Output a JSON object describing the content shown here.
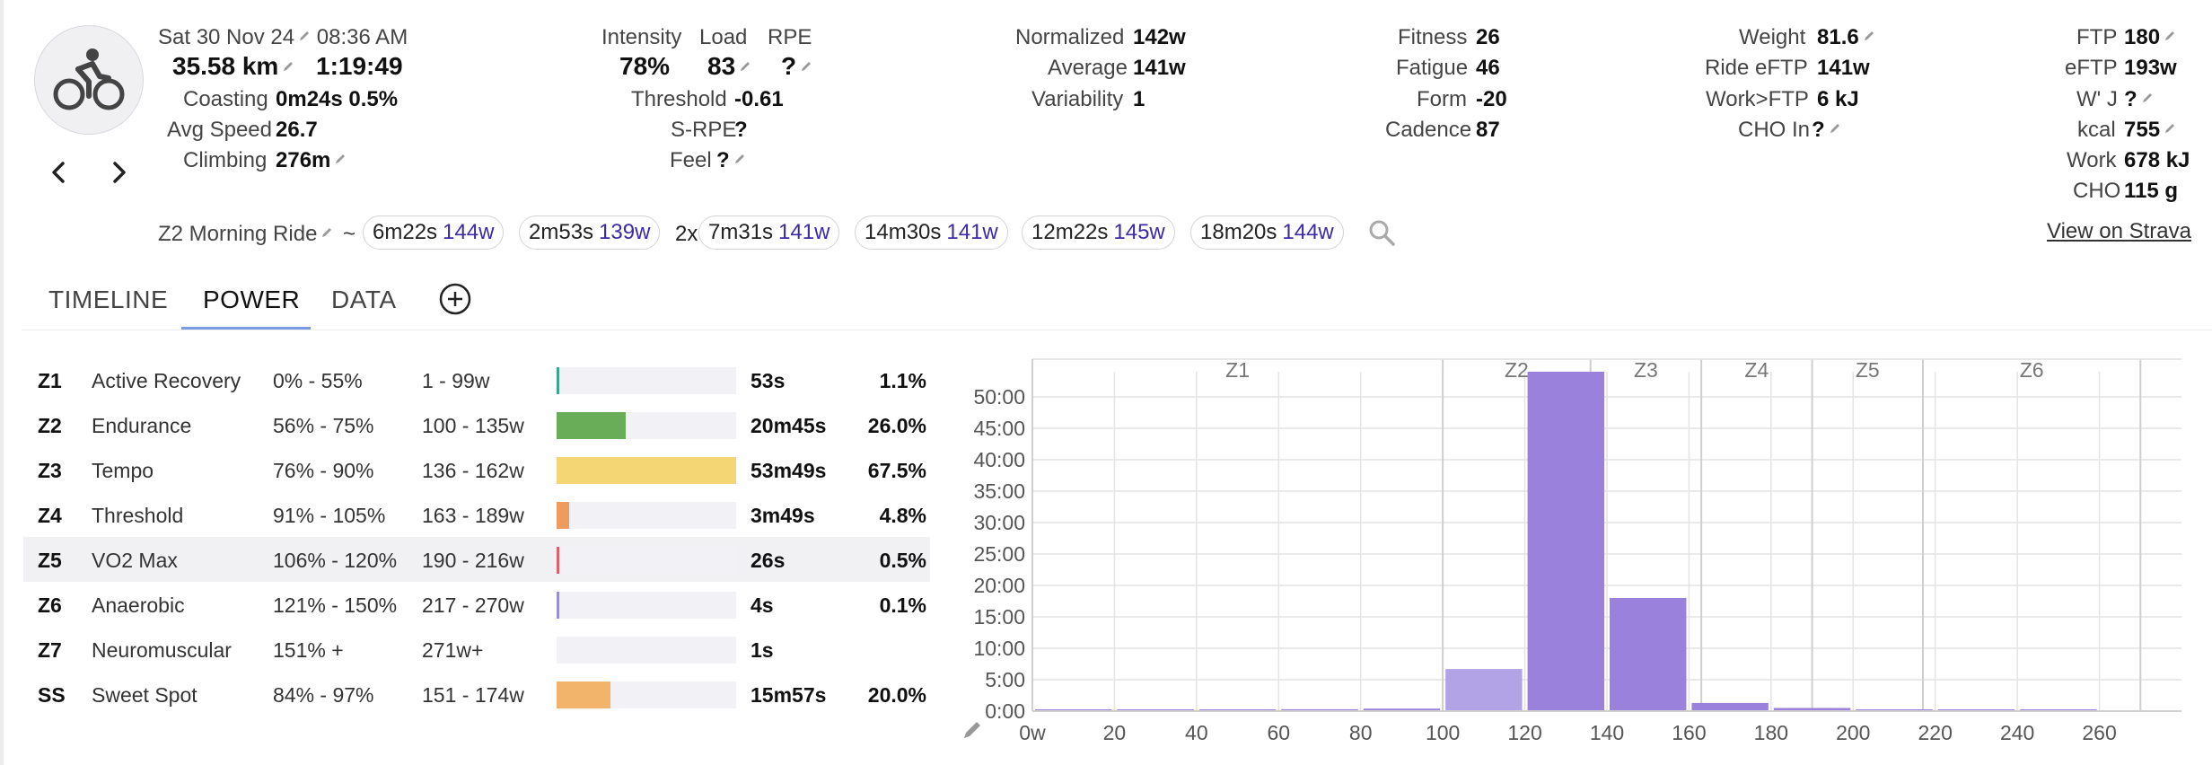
{
  "header": {
    "date": "Sat 30 Nov 24",
    "time": "08:36 AM",
    "distance": "35.58 km",
    "duration": "1:19:49",
    "coasting_label": "Coasting",
    "coasting_value": "0m24s  0.5%",
    "avg_speed_label": "Avg Speed",
    "avg_speed_value": "26.7",
    "climbing_label": "Climbing",
    "climbing_value": "276m",
    "intensity_label": "Intensity",
    "intensity_value": "78%",
    "load_label": "Load",
    "load_value": "83",
    "rpe_label": "RPE",
    "rpe_value": "?",
    "threshold_label": "Threshold",
    "threshold_value": "-0.61",
    "srpe_label": "S-RPE",
    "srpe_value": "?",
    "feel_label": "Feel",
    "feel_value": "?",
    "normalized_label": "Normalized",
    "normalized_value": "142w",
    "average_label": "Average",
    "average_value": "141w",
    "variability_label": "Variability",
    "variability_value": "1",
    "fitness_label": "Fitness",
    "fitness_value": "26",
    "fatigue_label": "Fatigue",
    "fatigue_value": "46",
    "form_label": "Form",
    "form_value": "-20",
    "cadence_label": "Cadence",
    "cadence_value": "87",
    "weight_label": "Weight",
    "weight_value": "81.6",
    "ride_eftp_label": "Ride eFTP",
    "ride_eftp_value": "141w",
    "work_ftp_label": "Work>FTP",
    "work_ftp_value": "6 kJ",
    "cho_in_label": "CHO In",
    "cho_in_value": "?",
    "ftp_label": "FTP",
    "ftp_value": "180",
    "eftp_label": "eFTP",
    "eftp_value": "193w",
    "wprime_label": "W' J",
    "wprime_value": "?",
    "kcal_label": "kcal",
    "kcal_value": "755",
    "work_label": "Work",
    "work_value": "678 kJ",
    "cho_label": "CHO",
    "cho_value": "115 g"
  },
  "intervals_bar": {
    "ride_name": "Z2 Morning Ride",
    "tilde": "~",
    "repeat_prefix": "2x",
    "chips": [
      {
        "time": "6m22s",
        "watts": "144w"
      },
      {
        "time": "2m53s",
        "watts": "139w"
      },
      {
        "time": "7m31s",
        "watts": "141w"
      },
      {
        "time": "14m30s",
        "watts": "141w"
      },
      {
        "time": "12m22s",
        "watts": "145w"
      },
      {
        "time": "18m20s",
        "watts": "144w"
      }
    ],
    "view_on_strava": "View on Strava"
  },
  "tabs": [
    "TIMELINE",
    "POWER",
    "DATA"
  ],
  "active_tab": "POWER",
  "zones": [
    {
      "id": "Z1",
      "name": "Active Recovery",
      "pct": "0% - 55%",
      "watts": "1 - 99w",
      "time": "53s",
      "share": "1.1%",
      "fill": 0.011,
      "color": "#3aa68e"
    },
    {
      "id": "Z2",
      "name": "Endurance",
      "pct": "56% - 75%",
      "watts": "100 - 135w",
      "time": "20m45s",
      "share": "26.0%",
      "fill": 0.385,
      "color": "#6aad58"
    },
    {
      "id": "Z3",
      "name": "Tempo",
      "pct": "76% - 90%",
      "watts": "136 - 162w",
      "time": "53m49s",
      "share": "67.5%",
      "fill": 1.0,
      "color": "#f5d674"
    },
    {
      "id": "Z4",
      "name": "Threshold",
      "pct": "91% - 105%",
      "watts": "163 - 189w",
      "time": "3m49s",
      "share": "4.8%",
      "fill": 0.07,
      "color": "#ef9a5e"
    },
    {
      "id": "Z5",
      "name": "VO2 Max",
      "pct": "106% - 120%",
      "watts": "190 - 216w",
      "time": "26s",
      "share": "0.5%",
      "fill": 0.008,
      "color": "#e0606a"
    },
    {
      "id": "Z6",
      "name": "Anaerobic",
      "pct": "121% - 150%",
      "watts": "217 - 270w",
      "time": "4s",
      "share": "0.1%",
      "fill": 0.004,
      "color": "#9a8cd8"
    },
    {
      "id": "Z7",
      "name": "Neuromuscular",
      "pct": "151% +",
      "watts": "271w+",
      "time": "1s",
      "share": "",
      "fill": 0.0,
      "color": "#555555"
    },
    {
      "id": "SS",
      "name": "Sweet Spot",
      "pct": "84% - 97%",
      "watts": "151 - 174w",
      "time": "15m57s",
      "share": "20.0%",
      "fill": 0.3,
      "color": "#f2b46a"
    }
  ],
  "highlighted_zone": "Z5",
  "chart_data": {
    "type": "bar",
    "title": "",
    "xlabel": "",
    "ylabel": "",
    "x_ticks": [
      "0w",
      "20",
      "40",
      "60",
      "80",
      "100",
      "120",
      "140",
      "160",
      "180",
      "200",
      "220",
      "240",
      "260"
    ],
    "x_range": [
      0,
      280
    ],
    "y_ticks": [
      "0:00",
      "5:00",
      "10:00",
      "15:00",
      "20:00",
      "25:00",
      "30:00",
      "35:00",
      "40:00",
      "45:00",
      "50:00"
    ],
    "y_range_minutes": [
      0,
      54
    ],
    "bin_width_w": 20,
    "bins": [
      {
        "start": 0,
        "minutes": 0.05
      },
      {
        "start": 20,
        "minutes": 0.15
      },
      {
        "start": 40,
        "minutes": 0.25
      },
      {
        "start": 60,
        "minutes": 0.3
      },
      {
        "start": 80,
        "minutes": 0.4
      },
      {
        "start": 100,
        "minutes": 6.7
      },
      {
        "start": 120,
        "minutes": 54.0
      },
      {
        "start": 140,
        "minutes": 18.0
      },
      {
        "start": 160,
        "minutes": 1.3
      },
      {
        "start": 180,
        "minutes": 0.5
      },
      {
        "start": 200,
        "minutes": 0.25
      },
      {
        "start": 220,
        "minutes": 0.2
      },
      {
        "start": 240,
        "minutes": 0.2
      }
    ],
    "zone_bands": [
      {
        "label": "Z1",
        "from": 0,
        "to": 100
      },
      {
        "label": "Z2",
        "from": 100,
        "to": 136
      },
      {
        "label": "Z3",
        "from": 136,
        "to": 163
      },
      {
        "label": "Z4",
        "from": 163,
        "to": 190
      },
      {
        "label": "Z5",
        "from": 190,
        "to": 217
      },
      {
        "label": "Z6",
        "from": 217,
        "to": 270
      }
    ],
    "grid": true,
    "bar_color": "#9a82dc",
    "bar_color_z2": "#b2a2e6"
  }
}
